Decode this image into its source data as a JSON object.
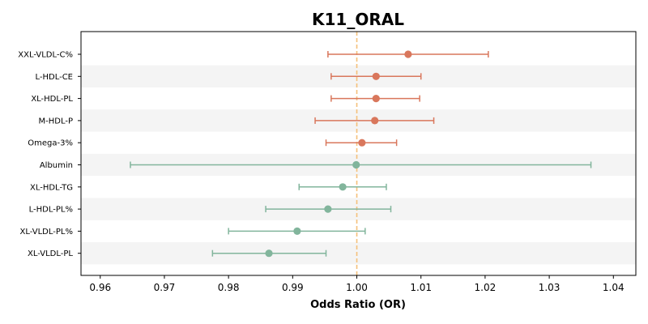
{
  "chart_data": {
    "type": "forest",
    "title": "K11_ORAL",
    "xlabel": "Odds Ratio (OR)",
    "ylabel": "",
    "xlim": [
      0.957,
      1.0435
    ],
    "xticks": [
      0.96,
      0.97,
      0.98,
      0.99,
      1.0,
      1.01,
      1.02,
      1.03,
      1.04
    ],
    "xtick_labels": [
      "0.96",
      "0.97",
      "0.98",
      "0.99",
      "1.00",
      "1.01",
      "1.02",
      "1.03",
      "1.04"
    ],
    "reference_line": 1.0,
    "reference_color": "#f5c07a",
    "row_band_color": "#f4f4f4",
    "grid": false,
    "colors": {
      "positive": "#d9775c",
      "negative": "#82b59c"
    },
    "rows": [
      {
        "label": "XXL-VLDL-C%",
        "or": 1.008,
        "ci_low": 0.9955,
        "ci_high": 1.0205,
        "group": "positive"
      },
      {
        "label": "L-HDL-CE",
        "or": 1.003,
        "ci_low": 0.996,
        "ci_high": 1.01,
        "group": "positive"
      },
      {
        "label": "XL-HDL-PL",
        "or": 1.003,
        "ci_low": 0.996,
        "ci_high": 1.0098,
        "group": "positive"
      },
      {
        "label": "M-HDL-P",
        "or": 1.0028,
        "ci_low": 0.9935,
        "ci_high": 1.012,
        "group": "positive"
      },
      {
        "label": "Omega-3%",
        "or": 1.0008,
        "ci_low": 0.9952,
        "ci_high": 1.0062,
        "group": "positive"
      },
      {
        "label": "Albumin",
        "or": 0.9999,
        "ci_low": 0.9647,
        "ci_high": 1.0365,
        "group": "negative"
      },
      {
        "label": "XL-HDL-TG",
        "or": 0.9978,
        "ci_low": 0.991,
        "ci_high": 1.0046,
        "group": "negative"
      },
      {
        "label": "L-HDL-PL%",
        "or": 0.9955,
        "ci_low": 0.9858,
        "ci_high": 1.0053,
        "group": "negative"
      },
      {
        "label": "XL-VLDL-PL%",
        "or": 0.9907,
        "ci_low": 0.98,
        "ci_high": 1.0013,
        "group": "negative"
      },
      {
        "label": "XL-VLDL-PL",
        "or": 0.9863,
        "ci_low": 0.9775,
        "ci_high": 0.9952,
        "group": "negative"
      }
    ]
  }
}
